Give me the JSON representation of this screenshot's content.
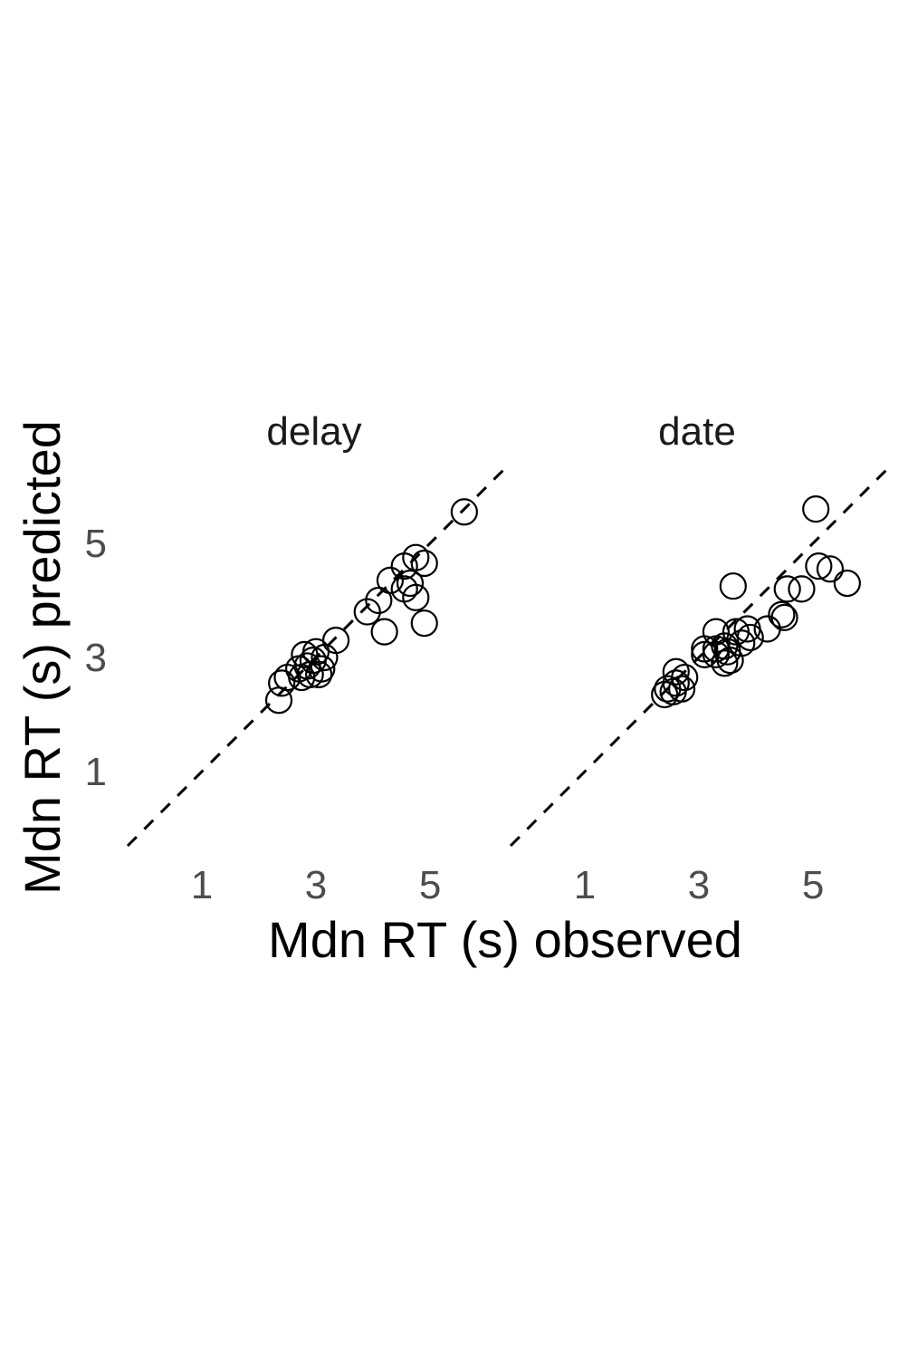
{
  "chart_data": {
    "type": "scatter",
    "xlabel": "Mdn RT (s) observed",
    "ylabel": "Mdn RT (s) predicted",
    "xlim": [
      -0.3,
      6.3
    ],
    "ylim": [
      -0.3,
      6.3
    ],
    "x_ticks": [
      1,
      3,
      5
    ],
    "y_ticks": [
      1,
      3,
      5
    ],
    "grid": false,
    "reference_line": "identity (y = x), dashed",
    "marker": "open circle",
    "colors": {
      "marker": "#000000",
      "line": "#000000",
      "tick_text": "#4d4d4d"
    },
    "panels": [
      {
        "title": "delay",
        "points": [
          {
            "x": 5.6,
            "y": 5.55
          },
          {
            "x": 4.75,
            "y": 4.75
          },
          {
            "x": 4.9,
            "y": 4.65
          },
          {
            "x": 4.55,
            "y": 4.6
          },
          {
            "x": 4.3,
            "y": 4.35
          },
          {
            "x": 4.65,
            "y": 4.3
          },
          {
            "x": 4.55,
            "y": 4.2
          },
          {
            "x": 4.75,
            "y": 4.05
          },
          {
            "x": 4.1,
            "y": 4.0
          },
          {
            "x": 3.9,
            "y": 3.8
          },
          {
            "x": 4.9,
            "y": 3.6
          },
          {
            "x": 4.2,
            "y": 3.45
          },
          {
            "x": 3.35,
            "y": 3.3
          },
          {
            "x": 3.0,
            "y": 3.1
          },
          {
            "x": 2.8,
            "y": 3.05
          },
          {
            "x": 3.15,
            "y": 3.0
          },
          {
            "x": 2.95,
            "y": 2.95
          },
          {
            "x": 2.85,
            "y": 2.85
          },
          {
            "x": 3.1,
            "y": 2.8
          },
          {
            "x": 2.7,
            "y": 2.8
          },
          {
            "x": 3.05,
            "y": 2.7
          },
          {
            "x": 2.9,
            "y": 2.7
          },
          {
            "x": 2.75,
            "y": 2.65
          },
          {
            "x": 2.5,
            "y": 2.65
          },
          {
            "x": 2.4,
            "y": 2.55
          },
          {
            "x": 2.35,
            "y": 2.25
          }
        ]
      },
      {
        "title": "date",
        "points": [
          {
            "x": 5.05,
            "y": 5.6
          },
          {
            "x": 5.1,
            "y": 4.6
          },
          {
            "x": 5.3,
            "y": 4.55
          },
          {
            "x": 5.6,
            "y": 4.3
          },
          {
            "x": 3.6,
            "y": 4.25
          },
          {
            "x": 4.55,
            "y": 4.2
          },
          {
            "x": 4.8,
            "y": 4.2
          },
          {
            "x": 4.45,
            "y": 3.75
          },
          {
            "x": 4.5,
            "y": 3.7
          },
          {
            "x": 4.2,
            "y": 3.5
          },
          {
            "x": 3.85,
            "y": 3.5
          },
          {
            "x": 3.65,
            "y": 3.45
          },
          {
            "x": 3.3,
            "y": 3.45
          },
          {
            "x": 3.9,
            "y": 3.35
          },
          {
            "x": 3.75,
            "y": 3.25
          },
          {
            "x": 3.45,
            "y": 3.2
          },
          {
            "x": 3.3,
            "y": 3.15
          },
          {
            "x": 3.1,
            "y": 3.15
          },
          {
            "x": 3.5,
            "y": 3.1
          },
          {
            "x": 3.3,
            "y": 3.05
          },
          {
            "x": 3.1,
            "y": 3.05
          },
          {
            "x": 3.55,
            "y": 2.95
          },
          {
            "x": 3.45,
            "y": 2.9
          },
          {
            "x": 2.6,
            "y": 2.75
          },
          {
            "x": 2.75,
            "y": 2.65
          },
          {
            "x": 2.6,
            "y": 2.55
          },
          {
            "x": 2.45,
            "y": 2.45
          },
          {
            "x": 2.7,
            "y": 2.45
          },
          {
            "x": 2.55,
            "y": 2.4
          },
          {
            "x": 2.4,
            "y": 2.35
          }
        ]
      }
    ]
  }
}
